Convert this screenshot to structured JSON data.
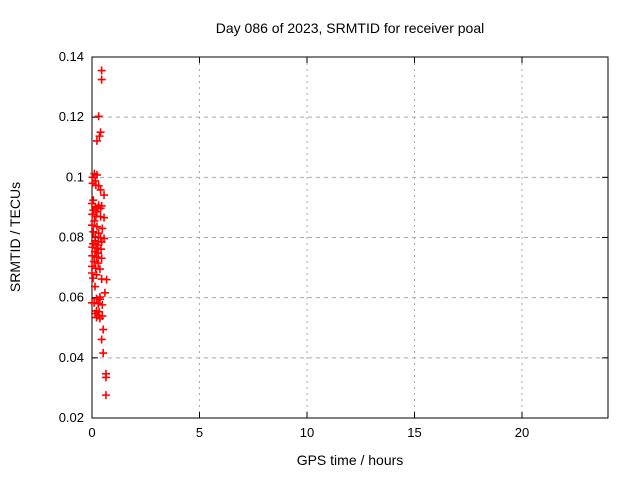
{
  "chart_data": {
    "type": "scatter",
    "title": "Day 086 of 2023, SRMTID for receiver poal",
    "xlabel": "GPS time / hours",
    "ylabel": "SRMTID / TECUs",
    "xlim": [
      0,
      24
    ],
    "ylim": [
      0.02,
      0.14
    ],
    "xticks": [
      0,
      5,
      10,
      15,
      20
    ],
    "yticks": [
      0.02,
      0.04,
      0.06,
      0.08,
      0.1,
      0.12,
      0.14
    ],
    "grid": true,
    "legend": "none",
    "marker": "plus",
    "marker_color": "#ff0000",
    "grid_color": "#aaaaaa",
    "axis_color": "#000000",
    "series": [
      {
        "name": "SRMTID",
        "points": [
          [
            0.45,
            0.1355
          ],
          [
            0.45,
            0.1325
          ],
          [
            0.31,
            0.1203
          ],
          [
            0.4,
            0.115
          ],
          [
            0.35,
            0.1137
          ],
          [
            0.23,
            0.1121
          ],
          [
            0.11,
            0.1012
          ],
          [
            0.23,
            0.1008
          ],
          [
            0.03,
            0.1
          ],
          [
            0.15,
            0.0988
          ],
          [
            0.03,
            0.098
          ],
          [
            0.18,
            0.0974
          ],
          [
            0.31,
            0.0972
          ],
          [
            0.4,
            0.0958
          ],
          [
            0.56,
            0.0941
          ],
          [
            0.06,
            0.0924
          ],
          [
            0.0,
            0.0913
          ],
          [
            0.31,
            0.0907
          ],
          [
            0.45,
            0.0905
          ],
          [
            0.15,
            0.0902
          ],
          [
            0.28,
            0.0899
          ],
          [
            0.4,
            0.0897
          ],
          [
            0.06,
            0.0891
          ],
          [
            0.23,
            0.0885
          ],
          [
            0.01,
            0.0877
          ],
          [
            0.18,
            0.0871
          ],
          [
            0.4,
            0.0869
          ],
          [
            0.56,
            0.0866
          ],
          [
            0.11,
            0.0855
          ],
          [
            0.0,
            0.0841
          ],
          [
            0.23,
            0.0836
          ],
          [
            0.48,
            0.083
          ],
          [
            0.06,
            0.0819
          ],
          [
            0.31,
            0.0814
          ],
          [
            0.15,
            0.0803
          ],
          [
            0.4,
            0.0799
          ],
          [
            0.56,
            0.0797
          ],
          [
            0.14,
            0.0789
          ],
          [
            0.29,
            0.0786
          ],
          [
            0.45,
            0.0785
          ],
          [
            0.05,
            0.0779
          ],
          [
            0.26,
            0.0775
          ],
          [
            0.01,
            0.0768
          ],
          [
            0.21,
            0.0765
          ],
          [
            0.42,
            0.0761
          ],
          [
            0.14,
            0.0753
          ],
          [
            0.29,
            0.0748
          ],
          [
            0.01,
            0.0739
          ],
          [
            0.21,
            0.0735
          ],
          [
            0.45,
            0.0731
          ],
          [
            0.1,
            0.072
          ],
          [
            0.29,
            0.0715
          ],
          [
            0.0,
            0.0704
          ],
          [
            0.17,
            0.0698
          ],
          [
            0.37,
            0.0695
          ],
          [
            0.0,
            0.0682
          ],
          [
            0.21,
            0.0676
          ],
          [
            0.05,
            0.0665
          ],
          [
            0.45,
            0.0662
          ],
          [
            0.68,
            0.066
          ],
          [
            0.14,
            0.0637
          ],
          [
            0.6,
            0.0616
          ],
          [
            0.37,
            0.0602
          ],
          [
            0.21,
            0.0597
          ],
          [
            0.37,
            0.0595
          ],
          [
            0.0,
            0.0583
          ],
          [
            0.1,
            0.0583
          ],
          [
            0.29,
            0.058
          ],
          [
            0.48,
            0.0576
          ],
          [
            0.21,
            0.0556
          ],
          [
            0.33,
            0.0553
          ],
          [
            0.14,
            0.0547
          ],
          [
            0.29,
            0.0542
          ],
          [
            0.48,
            0.0539
          ],
          [
            0.21,
            0.0534
          ],
          [
            0.37,
            0.0531
          ],
          [
            0.52,
            0.0494
          ],
          [
            0.45,
            0.0461
          ],
          [
            0.52,
            0.0416
          ],
          [
            0.65,
            0.0347
          ],
          [
            0.65,
            0.0335
          ],
          [
            0.65,
            0.0276
          ]
        ]
      }
    ]
  }
}
